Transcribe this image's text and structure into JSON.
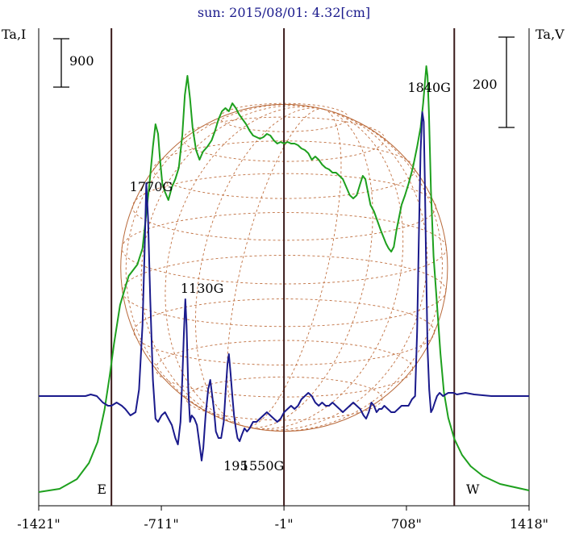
{
  "chart_data": {
    "type": "line",
    "title": "sun: 2015/08/01: 4.32[cm]",
    "left_axis_label": "Ta,I",
    "right_axis_label": "Ta,V",
    "scale_bar_left": "900",
    "scale_bar_right": "200",
    "x_ticks": [
      "-1421\"",
      "-711\"",
      "-1\"",
      "708\"",
      "1418\""
    ],
    "x_tick_values": [
      -1421,
      -711,
      -1,
      708,
      1418
    ],
    "xlim": [
      -1421,
      1418
    ],
    "vertical_lines_x": [
      -1000,
      -1,
      985
    ],
    "limb_labels": {
      "east": "E",
      "west": "W"
    },
    "disk_radius_arcsec": 946,
    "annotations": [
      {
        "text": "1770G",
        "x": -770
      },
      {
        "text": "1130G",
        "x": -475
      },
      {
        "text": "1840G",
        "x": 840
      },
      {
        "text": "195",
        "x": -280
      },
      {
        "text": "1550G",
        "x": -125
      }
    ],
    "series": [
      {
        "color": "#1ea01e",
        "y_axis": "left",
        "points": [
          [
            -1421,
            0.04
          ],
          [
            -1300,
            0.06
          ],
          [
            -1200,
            0.12
          ],
          [
            -1130,
            0.22
          ],
          [
            -1080,
            0.35
          ],
          [
            -1040,
            0.55
          ],
          [
            -1010,
            0.76
          ],
          [
            -985,
            0.96
          ],
          [
            -950,
            1.2
          ],
          [
            -900,
            1.38
          ],
          [
            -850,
            1.45
          ],
          [
            -820,
            1.55
          ],
          [
            -800,
            1.75
          ],
          [
            -780,
            1.95
          ],
          [
            -760,
            2.18
          ],
          [
            -745,
            2.32
          ],
          [
            -730,
            2.26
          ],
          [
            -720,
            2.12
          ],
          [
            -705,
            1.95
          ],
          [
            -690,
            1.9
          ],
          [
            -670,
            1.85
          ],
          [
            -650,
            1.93
          ],
          [
            -630,
            1.98
          ],
          [
            -610,
            2.05
          ],
          [
            -590,
            2.25
          ],
          [
            -575,
            2.5
          ],
          [
            -560,
            2.62
          ],
          [
            -545,
            2.48
          ],
          [
            -530,
            2.3
          ],
          [
            -510,
            2.16
          ],
          [
            -490,
            2.1
          ],
          [
            -470,
            2.15
          ],
          [
            -445,
            2.18
          ],
          [
            -420,
            2.22
          ],
          [
            -400,
            2.28
          ],
          [
            -380,
            2.35
          ],
          [
            -360,
            2.4
          ],
          [
            -340,
            2.42
          ],
          [
            -320,
            2.4
          ],
          [
            -300,
            2.45
          ],
          [
            -280,
            2.42
          ],
          [
            -260,
            2.38
          ],
          [
            -240,
            2.35
          ],
          [
            -220,
            2.32
          ],
          [
            -200,
            2.28
          ],
          [
            -180,
            2.25
          ],
          [
            -160,
            2.24
          ],
          [
            -140,
            2.23
          ],
          [
            -120,
            2.24
          ],
          [
            -100,
            2.26
          ],
          [
            -80,
            2.25
          ],
          [
            -60,
            2.22
          ],
          [
            -40,
            2.2
          ],
          [
            -20,
            2.21
          ],
          [
            0,
            2.2
          ],
          [
            20,
            2.21
          ],
          [
            40,
            2.2
          ],
          [
            60,
            2.2
          ],
          [
            80,
            2.19
          ],
          [
            100,
            2.17
          ],
          [
            120,
            2.16
          ],
          [
            140,
            2.14
          ],
          [
            160,
            2.1
          ],
          [
            180,
            2.12
          ],
          [
            200,
            2.1
          ],
          [
            220,
            2.07
          ],
          [
            240,
            2.05
          ],
          [
            260,
            2.04
          ],
          [
            280,
            2.02
          ],
          [
            300,
            2.02
          ],
          [
            320,
            2.0
          ],
          [
            340,
            1.98
          ],
          [
            360,
            1.93
          ],
          [
            380,
            1.88
          ],
          [
            400,
            1.86
          ],
          [
            420,
            1.88
          ],
          [
            440,
            1.95
          ],
          [
            455,
            2.0
          ],
          [
            470,
            1.98
          ],
          [
            485,
            1.9
          ],
          [
            500,
            1.82
          ],
          [
            520,
            1.78
          ],
          [
            540,
            1.72
          ],
          [
            560,
            1.66
          ],
          [
            575,
            1.62
          ],
          [
            590,
            1.58
          ],
          [
            605,
            1.55
          ],
          [
            620,
            1.53
          ],
          [
            635,
            1.56
          ],
          [
            650,
            1.66
          ],
          [
            665,
            1.74
          ],
          [
            680,
            1.82
          ],
          [
            700,
            1.88
          ],
          [
            720,
            1.95
          ],
          [
            745,
            2.05
          ],
          [
            770,
            2.18
          ],
          [
            790,
            2.3
          ],
          [
            805,
            2.45
          ],
          [
            815,
            2.58
          ],
          [
            823,
            2.68
          ],
          [
            830,
            2.62
          ],
          [
            838,
            2.4
          ],
          [
            850,
            1.9
          ],
          [
            865,
            1.5
          ],
          [
            885,
            1.2
          ],
          [
            905,
            0.9
          ],
          [
            925,
            0.66
          ],
          [
            950,
            0.5
          ],
          [
            985,
            0.37
          ],
          [
            1030,
            0.27
          ],
          [
            1080,
            0.2
          ],
          [
            1150,
            0.14
          ],
          [
            1250,
            0.09
          ],
          [
            1418,
            0.05
          ]
        ]
      },
      {
        "color": "#1a1a8c",
        "y_axis": "right",
        "points": [
          [
            -1421,
            0.0
          ],
          [
            -1150,
            0.0
          ],
          [
            -1120,
            0.005
          ],
          [
            -1085,
            0.0
          ],
          [
            -1050,
            -0.02
          ],
          [
            -1020,
            -0.03
          ],
          [
            -1000,
            -0.03
          ],
          [
            -970,
            -0.02
          ],
          [
            -940,
            -0.03
          ],
          [
            -920,
            -0.04
          ],
          [
            -890,
            -0.06
          ],
          [
            -860,
            -0.05
          ],
          [
            -840,
            0.02
          ],
          [
            -820,
            0.22
          ],
          [
            -808,
            0.45
          ],
          [
            -798,
            0.66
          ],
          [
            -788,
            0.55
          ],
          [
            -775,
            0.3
          ],
          [
            -760,
            0.05
          ],
          [
            -745,
            -0.07
          ],
          [
            -730,
            -0.08
          ],
          [
            -710,
            -0.06
          ],
          [
            -690,
            -0.05
          ],
          [
            -670,
            -0.07
          ],
          [
            -650,
            -0.09
          ],
          [
            -630,
            -0.13
          ],
          [
            -615,
            -0.15
          ],
          [
            -600,
            -0.08
          ],
          [
            -590,
            0.05
          ],
          [
            -580,
            0.2
          ],
          [
            -572,
            0.3
          ],
          [
            -565,
            0.22
          ],
          [
            -555,
            0.02
          ],
          [
            -545,
            -0.08
          ],
          [
            -535,
            -0.06
          ],
          [
            -520,
            -0.07
          ],
          [
            -505,
            -0.09
          ],
          [
            -490,
            -0.15
          ],
          [
            -478,
            -0.2
          ],
          [
            -468,
            -0.16
          ],
          [
            -455,
            -0.06
          ],
          [
            -440,
            0.02
          ],
          [
            -428,
            0.05
          ],
          [
            -416,
            0.0
          ],
          [
            -405,
            -0.05
          ],
          [
            -395,
            -0.11
          ],
          [
            -380,
            -0.13
          ],
          [
            -365,
            -0.13
          ],
          [
            -350,
            -0.08
          ],
          [
            -338,
            0.02
          ],
          [
            -328,
            0.1
          ],
          [
            -320,
            0.13
          ],
          [
            -310,
            0.07
          ],
          [
            -300,
            0.0
          ],
          [
            -290,
            -0.06
          ],
          [
            -280,
            -0.1
          ],
          [
            -270,
            -0.13
          ],
          [
            -258,
            -0.14
          ],
          [
            -245,
            -0.12
          ],
          [
            -230,
            -0.1
          ],
          [
            -215,
            -0.11
          ],
          [
            -200,
            -0.1
          ],
          [
            -180,
            -0.08
          ],
          [
            -160,
            -0.08
          ],
          [
            -140,
            -0.07
          ],
          [
            -120,
            -0.06
          ],
          [
            -100,
            -0.05
          ],
          [
            -80,
            -0.06
          ],
          [
            -60,
            -0.07
          ],
          [
            -40,
            -0.08
          ],
          [
            -20,
            -0.07
          ],
          [
            0,
            -0.05
          ],
          [
            20,
            -0.04
          ],
          [
            40,
            -0.03
          ],
          [
            60,
            -0.04
          ],
          [
            80,
            -0.03
          ],
          [
            100,
            -0.01
          ],
          [
            120,
            0.0
          ],
          [
            140,
            0.01
          ],
          [
            160,
            0.0
          ],
          [
            180,
            -0.02
          ],
          [
            200,
            -0.03
          ],
          [
            220,
            -0.02
          ],
          [
            240,
            -0.03
          ],
          [
            260,
            -0.03
          ],
          [
            280,
            -0.02
          ],
          [
            300,
            -0.03
          ],
          [
            320,
            -0.04
          ],
          [
            340,
            -0.05
          ],
          [
            360,
            -0.04
          ],
          [
            380,
            -0.03
          ],
          [
            400,
            -0.02
          ],
          [
            420,
            -0.03
          ],
          [
            440,
            -0.04
          ],
          [
            460,
            -0.06
          ],
          [
            475,
            -0.07
          ],
          [
            490,
            -0.05
          ],
          [
            505,
            -0.02
          ],
          [
            520,
            -0.03
          ],
          [
            535,
            -0.05
          ],
          [
            550,
            -0.04
          ],
          [
            565,
            -0.04
          ],
          [
            580,
            -0.03
          ],
          [
            600,
            -0.04
          ],
          [
            620,
            -0.05
          ],
          [
            640,
            -0.05
          ],
          [
            660,
            -0.04
          ],
          [
            680,
            -0.03
          ],
          [
            700,
            -0.03
          ],
          [
            720,
            -0.03
          ],
          [
            740,
            -0.01
          ],
          [
            758,
            0.0
          ],
          [
            770,
            0.2
          ],
          [
            780,
            0.5
          ],
          [
            790,
            0.76
          ],
          [
            800,
            0.88
          ],
          [
            808,
            0.85
          ],
          [
            815,
            0.65
          ],
          [
            822,
            0.4
          ],
          [
            830,
            0.15
          ],
          [
            840,
            0.02
          ],
          [
            850,
            -0.05
          ],
          [
            860,
            -0.04
          ],
          [
            872,
            -0.02
          ],
          [
            885,
            0.0
          ],
          [
            900,
            0.01
          ],
          [
            920,
            0.0
          ],
          [
            950,
            0.01
          ],
          [
            980,
            0.01
          ],
          [
            1000,
            0.005
          ],
          [
            1050,
            0.01
          ],
          [
            1100,
            0.005
          ],
          [
            1200,
            0.0
          ],
          [
            1418,
            0.0
          ]
        ]
      }
    ]
  }
}
